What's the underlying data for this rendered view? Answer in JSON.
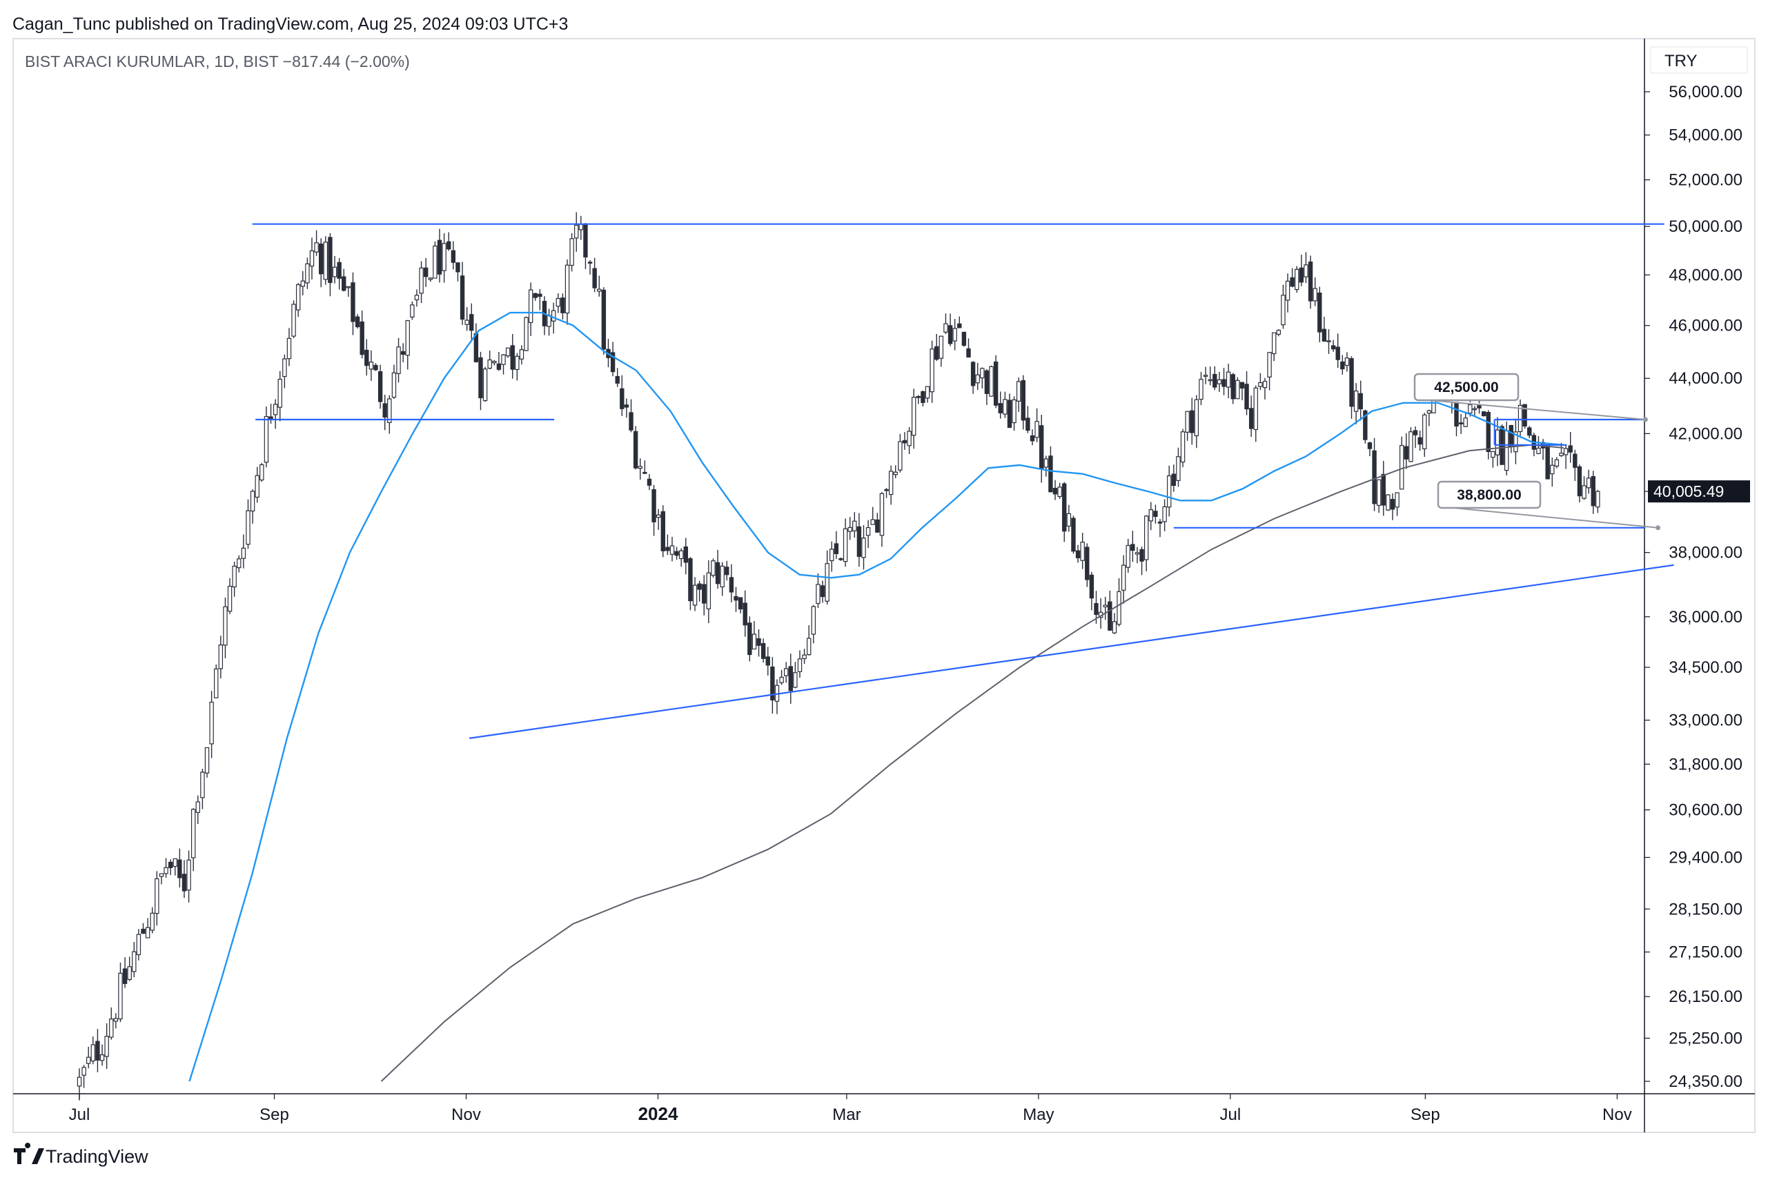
{
  "header": {
    "published": "Cagan_Tunc published on TradingView.com, Aug 25, 2024 09:03 UTC+3",
    "symbol_line": "BIST ARACI KURUMLAR, 1D, BIST  −817.44 (−2.00%)"
  },
  "currency": "TRY",
  "last_price_tag": "40,005.49",
  "brand": "TradingView",
  "colors": {
    "candle": "#2a2e39",
    "ma_fast": "#2196f3",
    "ma_slow": "#5d606b",
    "drawing": "#2962ff",
    "label_border": "#9598a1"
  },
  "chart_data": {
    "type": "candlestick",
    "y_scale": "log",
    "y_ticks": [
      "56,000.00",
      "54,000.00",
      "52,000.00",
      "50,000.00",
      "48,000.00",
      "46,000.00",
      "44,000.00",
      "42,000.00",
      "38,000.00",
      "36,000.00",
      "34,500.00",
      "33,000.00",
      "31,800.00",
      "30,600.00",
      "29,400.00",
      "28,150.00",
      "27,150.00",
      "26,150.00",
      "25,250.00",
      "24,350.00"
    ],
    "x_ticks": [
      {
        "label": "Jul",
        "date": "2023-07-01",
        "bold": false
      },
      {
        "label": "Sep",
        "date": "2023-09-01",
        "bold": false
      },
      {
        "label": "Nov",
        "date": "2023-11-01",
        "bold": false
      },
      {
        "label": "2024",
        "date": "2024-01-01",
        "bold": true
      },
      {
        "label": "Mar",
        "date": "2024-03-01",
        "bold": false
      },
      {
        "label": "May",
        "date": "2024-05-01",
        "bold": false
      },
      {
        "label": "Jul",
        "date": "2024-07-01",
        "bold": false
      },
      {
        "label": "Sep",
        "date": "2024-09-01",
        "bold": false
      },
      {
        "label": "Nov",
        "date": "2024-11-01",
        "bold": false
      }
    ],
    "close_path": [
      [
        "2023-07-01",
        24300
      ],
      [
        "2023-07-08",
        25200
      ],
      [
        "2023-07-15",
        26400
      ],
      [
        "2023-07-22",
        27800
      ],
      [
        "2023-07-29",
        29300
      ],
      [
        "2023-08-03",
        28600
      ],
      [
        "2023-08-07",
        31000
      ],
      [
        "2023-08-11",
        32500
      ],
      [
        "2023-08-15",
        35500
      ],
      [
        "2023-08-19",
        37200
      ],
      [
        "2023-08-24",
        39500
      ],
      [
        "2023-08-28",
        41500
      ],
      [
        "2023-09-02",
        44000
      ],
      [
        "2023-09-06",
        46000
      ],
      [
        "2023-09-10",
        47800
      ],
      [
        "2023-09-14",
        49200
      ],
      [
        "2023-09-20",
        48000
      ],
      [
        "2023-09-26",
        46500
      ],
      [
        "2023-10-01",
        44500
      ],
      [
        "2023-10-06",
        43200
      ],
      [
        "2023-10-12",
        45200
      ],
      [
        "2023-10-18",
        47600
      ],
      [
        "2023-10-23",
        48800
      ],
      [
        "2023-10-28",
        48000
      ],
      [
        "2023-11-02",
        46000
      ],
      [
        "2023-11-06",
        43800
      ],
      [
        "2023-11-10",
        45000
      ],
      [
        "2023-11-16",
        44800
      ],
      [
        "2023-11-21",
        46800
      ],
      [
        "2023-11-26",
        46300
      ],
      [
        "2023-12-01",
        46700
      ],
      [
        "2023-12-06",
        49500
      ],
      [
        "2023-12-11",
        48800
      ],
      [
        "2023-12-16",
        44500
      ],
      [
        "2023-12-22",
        42500
      ],
      [
        "2023-12-28",
        40500
      ],
      [
        "2024-01-03",
        38500
      ],
      [
        "2024-01-09",
        37500
      ],
      [
        "2024-01-14",
        36300
      ],
      [
        "2024-01-19",
        37500
      ],
      [
        "2024-01-25",
        37000
      ],
      [
        "2024-01-31",
        35000
      ],
      [
        "2024-02-05",
        34000
      ],
      [
        "2024-02-10",
        33700
      ],
      [
        "2024-02-15",
        35000
      ],
      [
        "2024-02-20",
        36200
      ],
      [
        "2024-02-26",
        37800
      ],
      [
        "2024-03-02",
        38600
      ],
      [
        "2024-03-07",
        38000
      ],
      [
        "2024-03-12",
        39800
      ],
      [
        "2024-03-17",
        41500
      ],
      [
        "2024-03-22",
        42600
      ],
      [
        "2024-03-27",
        44500
      ],
      [
        "2024-04-02",
        46200
      ],
      [
        "2024-04-06",
        45500
      ],
      [
        "2024-04-11",
        44300
      ],
      [
        "2024-04-16",
        43800
      ],
      [
        "2024-04-20",
        42500
      ],
      [
        "2024-04-25",
        43200
      ],
      [
        "2024-04-30",
        42000
      ],
      [
        "2024-05-05",
        40000
      ],
      [
        "2024-05-10",
        39200
      ],
      [
        "2024-05-15",
        38000
      ],
      [
        "2024-05-20",
        36500
      ],
      [
        "2024-05-24",
        35200
      ],
      [
        "2024-05-28",
        37500
      ],
      [
        "2024-06-02",
        38200
      ],
      [
        "2024-06-07",
        39000
      ],
      [
        "2024-06-12",
        40500
      ],
      [
        "2024-06-17",
        42200
      ],
      [
        "2024-06-22",
        43800
      ],
      [
        "2024-06-27",
        44200
      ],
      [
        "2024-07-02",
        43600
      ],
      [
        "2024-07-07",
        42500
      ],
      [
        "2024-07-12",
        44500
      ],
      [
        "2024-07-17",
        46800
      ],
      [
        "2024-07-22",
        48300
      ],
      [
        "2024-07-27",
        47200
      ],
      [
        "2024-08-01",
        45300
      ],
      [
        "2024-08-06",
        44500
      ],
      [
        "2024-08-11",
        42500
      ],
      [
        "2024-08-16",
        40000
      ],
      [
        "2024-08-21",
        39800
      ],
      [
        "2024-08-26",
        41500
      ],
      [
        "2024-08-31",
        42200
      ],
      [
        "2024-09-05",
        43500
      ],
      [
        "2024-09-10",
        42800
      ],
      [
        "2024-09-15",
        42500
      ],
      [
        "2024-09-20",
        42200
      ],
      [
        "2024-09-25",
        41500
      ],
      [
        "2024-10-01",
        42800
      ],
      [
        "2024-10-06",
        41500
      ],
      [
        "2024-10-11",
        40500
      ],
      [
        "2024-10-16",
        40800
      ],
      [
        "2024-10-21",
        40300
      ],
      [
        "2024-10-26",
        40005.49
      ]
    ],
    "ma_fast": [
      [
        "2023-08-05",
        24350
      ],
      [
        "2023-08-15",
        26500
      ],
      [
        "2023-08-25",
        29000
      ],
      [
        "2023-09-05",
        32500
      ],
      [
        "2023-09-15",
        35500
      ],
      [
        "2023-09-25",
        38000
      ],
      [
        "2023-10-05",
        40000
      ],
      [
        "2023-10-15",
        42000
      ],
      [
        "2023-10-25",
        44000
      ],
      [
        "2023-11-05",
        45800
      ],
      [
        "2023-11-15",
        46500
      ],
      [
        "2023-11-25",
        46500
      ],
      [
        "2023-12-05",
        46000
      ],
      [
        "2023-12-15",
        45000
      ],
      [
        "2023-12-25",
        44300
      ],
      [
        "2024-01-05",
        42800
      ],
      [
        "2024-01-15",
        41000
      ],
      [
        "2024-01-25",
        39500
      ],
      [
        "2024-02-05",
        38000
      ],
      [
        "2024-02-15",
        37300
      ],
      [
        "2024-02-25",
        37200
      ],
      [
        "2024-03-05",
        37300
      ],
      [
        "2024-03-15",
        37800
      ],
      [
        "2024-03-25",
        38800
      ],
      [
        "2024-04-05",
        39800
      ],
      [
        "2024-04-15",
        40800
      ],
      [
        "2024-04-25",
        40900
      ],
      [
        "2024-05-05",
        40700
      ],
      [
        "2024-05-15",
        40600
      ],
      [
        "2024-05-25",
        40300
      ],
      [
        "2024-06-05",
        40000
      ],
      [
        "2024-06-15",
        39700
      ],
      [
        "2024-06-25",
        39700
      ],
      [
        "2024-07-05",
        40100
      ],
      [
        "2024-07-15",
        40700
      ],
      [
        "2024-07-25",
        41200
      ],
      [
        "2024-08-05",
        42000
      ],
      [
        "2024-08-15",
        42800
      ],
      [
        "2024-08-25",
        43100
      ],
      [
        "2024-09-05",
        43100
      ],
      [
        "2024-09-15",
        42700
      ],
      [
        "2024-09-25",
        42200
      ],
      [
        "2024-10-05",
        41700
      ],
      [
        "2024-10-15",
        41600
      ]
    ],
    "ma_slow": [
      [
        "2023-10-05",
        24350
      ],
      [
        "2023-10-25",
        25600
      ],
      [
        "2023-11-15",
        26800
      ],
      [
        "2023-12-05",
        27800
      ],
      [
        "2023-12-25",
        28400
      ],
      [
        "2024-01-15",
        28900
      ],
      [
        "2024-02-05",
        29600
      ],
      [
        "2024-02-25",
        30500
      ],
      [
        "2024-03-15",
        31800
      ],
      [
        "2024-04-05",
        33200
      ],
      [
        "2024-04-25",
        34500
      ],
      [
        "2024-05-15",
        35700
      ],
      [
        "2024-06-05",
        36900
      ],
      [
        "2024-06-25",
        38100
      ],
      [
        "2024-07-15",
        39100
      ],
      [
        "2024-08-05",
        40000
      ],
      [
        "2024-08-25",
        40800
      ],
      [
        "2024-09-15",
        41400
      ],
      [
        "2024-10-05",
        41600
      ],
      [
        "2024-10-15",
        41500
      ]
    ],
    "horizontal_lines": [
      {
        "from": "2023-08-25",
        "to": "2024-11-16",
        "price": 50100
      },
      {
        "from": "2023-08-26",
        "to": "2023-11-29",
        "price": 42500
      },
      {
        "from": "2024-06-13",
        "to": "2024-11-10",
        "price": 38800
      },
      {
        "from": "2024-09-23",
        "to": "2024-11-10",
        "price": 42500
      },
      {
        "from": "2024-09-23",
        "to": "2024-10-16",
        "price": 41600
      }
    ],
    "trend_lines": [
      {
        "from": [
          "2023-11-02",
          32500
        ],
        "to": [
          "2024-11-19",
          37600
        ]
      }
    ],
    "price_labels": [
      {
        "text": "42,500.00",
        "anchor_date": "2024-11-10",
        "price": 42500
      },
      {
        "text": "38,800.00",
        "anchor_date": "2024-11-14",
        "price": 38800
      }
    ],
    "last_price": 40005.49
  }
}
